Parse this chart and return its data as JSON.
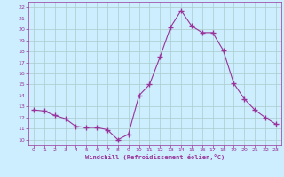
{
  "x": [
    0,
    1,
    2,
    3,
    4,
    5,
    6,
    7,
    8,
    9,
    10,
    11,
    12,
    13,
    14,
    15,
    16,
    17,
    18,
    19,
    20,
    21,
    22,
    23
  ],
  "y": [
    12.7,
    12.6,
    12.2,
    11.9,
    11.2,
    11.1,
    11.1,
    10.9,
    10.0,
    10.5,
    14.0,
    15.0,
    17.5,
    20.2,
    21.7,
    20.3,
    19.7,
    19.7,
    18.1,
    15.1,
    13.7,
    12.7,
    12.0,
    11.4
  ],
  "line_color": "#993399",
  "marker": "+",
  "marker_size": 4,
  "bg_color": "#cceeff",
  "grid_color": "#aacccc",
  "xlabel": "Windchill (Refroidissement éolien,°C)",
  "xlabel_color": "#993399",
  "tick_color": "#993399",
  "xlim": [
    -0.5,
    23.5
  ],
  "ylim": [
    9.5,
    22.5
  ],
  "yticks": [
    10,
    11,
    12,
    13,
    14,
    15,
    16,
    17,
    18,
    19,
    20,
    21,
    22
  ],
  "xticks": [
    0,
    1,
    2,
    3,
    4,
    5,
    6,
    7,
    8,
    9,
    10,
    11,
    12,
    13,
    14,
    15,
    16,
    17,
    18,
    19,
    20,
    21,
    22,
    23
  ]
}
